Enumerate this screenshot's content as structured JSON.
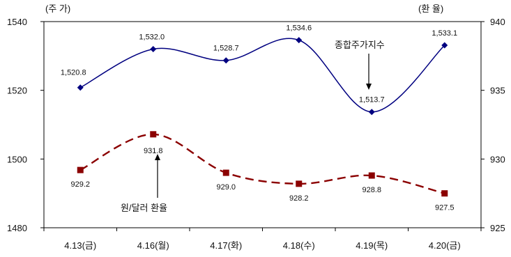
{
  "chart_data": {
    "type": "line",
    "categories": [
      "4.13(금)",
      "4.16(월)",
      "4.17(화)",
      "4.18(수)",
      "4.19(목)",
      "4.20(금)"
    ],
    "left_axis": {
      "unit_label": "(주 가)",
      "range": [
        1480,
        1540
      ],
      "ticks": [
        "1480",
        "1500",
        "1520",
        "1540"
      ]
    },
    "right_axis": {
      "unit_label": "(환 율)",
      "range": [
        925,
        940
      ],
      "ticks": [
        "925",
        "930",
        "935",
        "940"
      ]
    },
    "series": [
      {
        "name": "종합주가지수",
        "axis": "left",
        "values": [
          1520.8,
          1532.0,
          1528.7,
          1534.6,
          1513.7,
          1533.1
        ],
        "labels": [
          "1,520.8",
          "1,532.0",
          "1,528.7",
          "1,534.6",
          "1,513.7",
          "1,533.1"
        ],
        "color": "#000080",
        "line_style": "solid",
        "marker": "diamond"
      },
      {
        "name": "원/달러 환율",
        "axis": "right",
        "values": [
          929.2,
          931.8,
          929.0,
          928.2,
          928.8,
          927.5
        ],
        "labels": [
          "929.2",
          "931.8",
          "929.0",
          "928.2",
          "928.8",
          "927.5"
        ],
        "color": "#8b0000",
        "line_style": "dashed",
        "marker": "square"
      }
    ],
    "grid": false,
    "legend": "annotations with arrows"
  }
}
